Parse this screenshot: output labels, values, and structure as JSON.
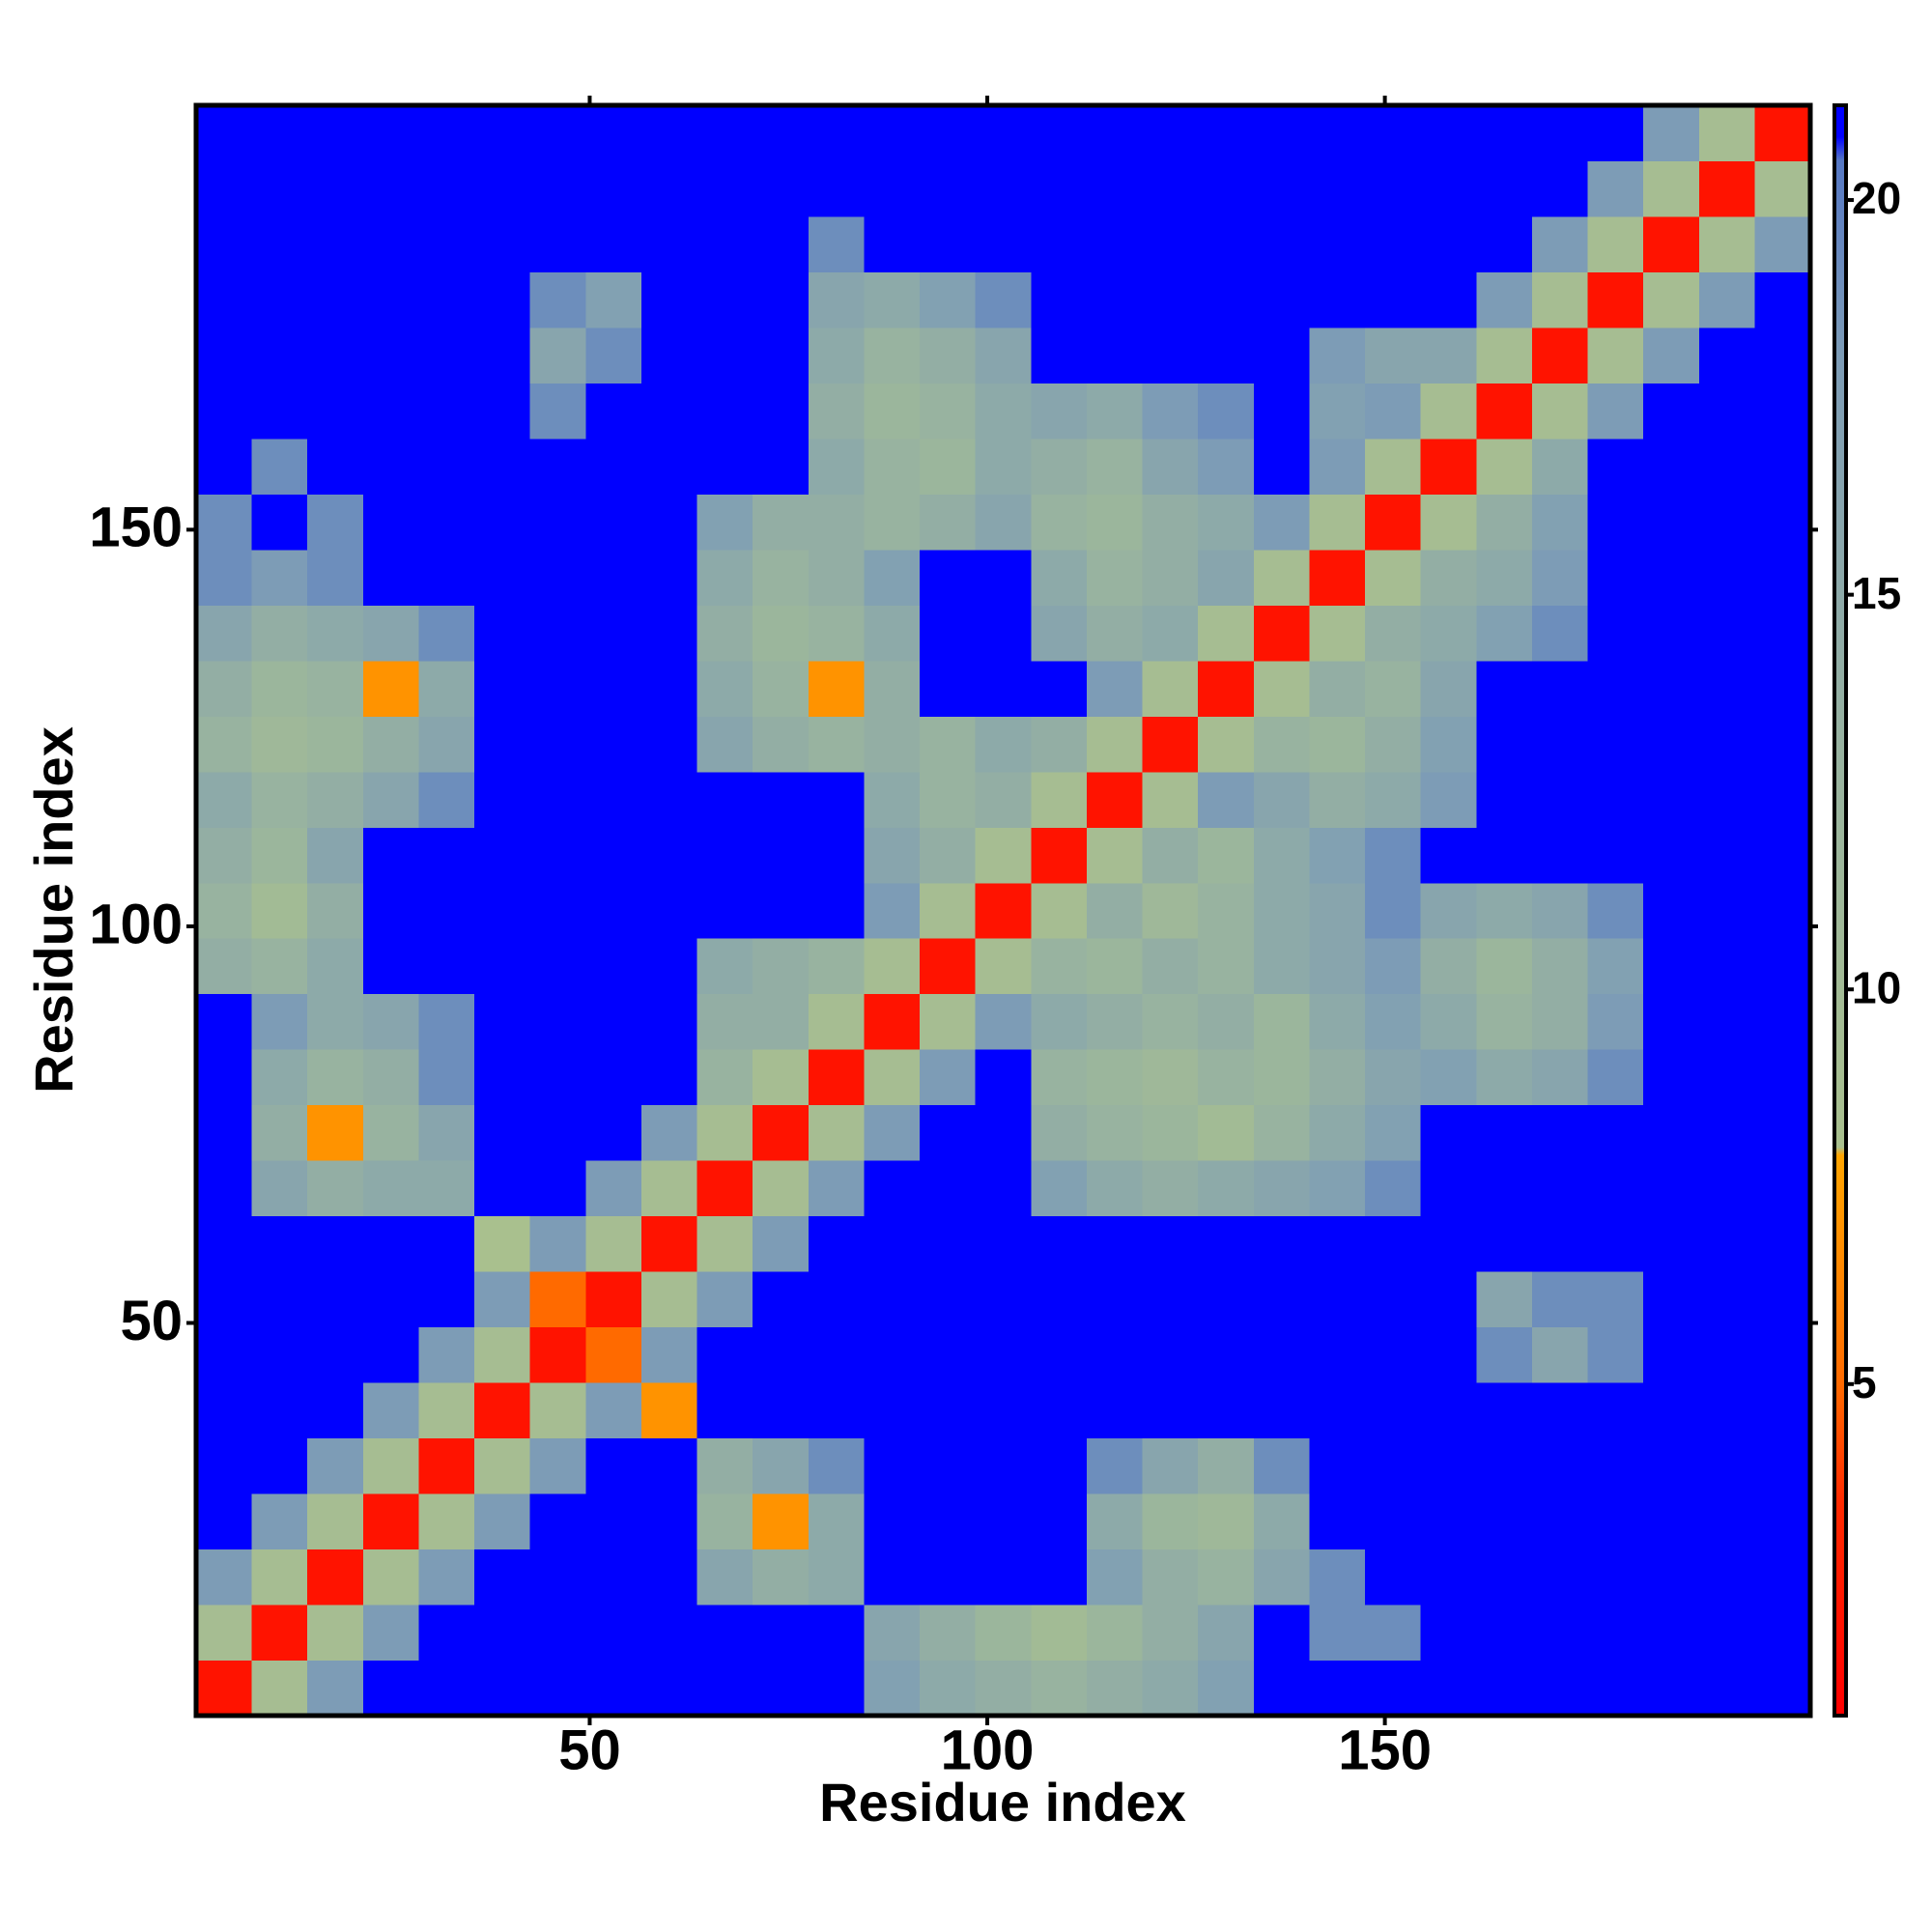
{
  "chart_data": {
    "type": "heatmap",
    "x_label": "Residue index",
    "y_label": "Residue index",
    "bins": [
      0.5,
      7.5,
      14.5,
      21.5,
      28.5,
      35.5,
      42.5,
      49.5,
      56.5,
      63.5,
      70.5,
      77.5,
      84.5,
      91.5,
      98.5,
      105.5,
      112.5,
      119.5,
      126.5,
      133.5,
      140.5,
      147.5,
      154.5,
      161.5,
      168.5,
      175.5,
      182.5,
      189.5,
      196.5,
      203.5
    ],
    "xlim": [
      0.5,
      203.5
    ],
    "ylim": [
      0.5,
      203.5
    ],
    "xticks": [
      50,
      100,
      150
    ],
    "yticks": [
      50,
      100,
      150
    ],
    "zlim": [
      0.8,
      21.2
    ],
    "zticks": [
      5,
      10,
      15,
      20
    ],
    "colorscale": [
      {
        "value": 0.8,
        "color": "#ff0000"
      },
      {
        "value": 3.5,
        "color": "#ff2a00"
      },
      {
        "value": 5,
        "color": "#ff6a00"
      },
      {
        "value": 7.9,
        "color": "#ffa500"
      },
      {
        "value": 8,
        "color": "#a9c08e"
      },
      {
        "value": 13,
        "color": "#98b3a0"
      },
      {
        "value": 18,
        "color": "#7d9cb6"
      },
      {
        "value": 20.5,
        "color": "#5678c4"
      },
      {
        "value": 20.8,
        "color": "#0000ff"
      },
      {
        "value": 21.2,
        "color": "#0000ff"
      }
    ],
    "z": [
      [
        2,
        9,
        18,
        21,
        21,
        21,
        21,
        21,
        21,
        21,
        21,
        21,
        17,
        15,
        14,
        13,
        14,
        15,
        17,
        21,
        21,
        21,
        21,
        21,
        21,
        21,
        21,
        21,
        21
      ],
      [
        9,
        2,
        9,
        18,
        21,
        21,
        21,
        21,
        21,
        21,
        21,
        21,
        16,
        14,
        12,
        10,
        12,
        14,
        16,
        21,
        19,
        19,
        21,
        21,
        21,
        21,
        21,
        21,
        21
      ],
      [
        18,
        9,
        2,
        9,
        18,
        21,
        21,
        21,
        21,
        16,
        14,
        15,
        21,
        21,
        21,
        21,
        17,
        14,
        13,
        16,
        19,
        21,
        21,
        21,
        21,
        21,
        21,
        21,
        21
      ],
      [
        21,
        18,
        9,
        2,
        9,
        18,
        21,
        21,
        21,
        13,
        7,
        15,
        21,
        21,
        21,
        21,
        15,
        12,
        11,
        15,
        21,
        21,
        21,
        21,
        21,
        21,
        21,
        21,
        21
      ],
      [
        21,
        21,
        18,
        9,
        2,
        9,
        18,
        21,
        21,
        14,
        16,
        19,
        21,
        21,
        21,
        21,
        19,
        16,
        14,
        19,
        21,
        21,
        21,
        21,
        21,
        21,
        21,
        21,
        21
      ],
      [
        21,
        21,
        21,
        18,
        9,
        2,
        9,
        18,
        7,
        21,
        21,
        21,
        21,
        21,
        21,
        21,
        21,
        21,
        21,
        21,
        21,
        21,
        21,
        21,
        21,
        21,
        21,
        21,
        21
      ],
      [
        21,
        21,
        21,
        21,
        18,
        9,
        2,
        5,
        18,
        21,
        21,
        21,
        21,
        21,
        21,
        21,
        21,
        21,
        21,
        21,
        21,
        21,
        21,
        19,
        16,
        19,
        21,
        21,
        21
      ],
      [
        21,
        21,
        21,
        21,
        21,
        18,
        5,
        2,
        9,
        18,
        21,
        21,
        21,
        21,
        21,
        21,
        21,
        21,
        21,
        21,
        21,
        21,
        21,
        16,
        19,
        19,
        21,
        21,
        21
      ],
      [
        21,
        21,
        21,
        21,
        21,
        8,
        18,
        9,
        2,
        9,
        18,
        21,
        21,
        21,
        21,
        21,
        21,
        21,
        21,
        21,
        21,
        21,
        21,
        21,
        21,
        21,
        21,
        21,
        21
      ],
      [
        21,
        16,
        14,
        15,
        15,
        21,
        21,
        18,
        9,
        2,
        9,
        18,
        21,
        21,
        21,
        17,
        15,
        14,
        15,
        16,
        17,
        19,
        21,
        21,
        21,
        21,
        21,
        21,
        21
      ],
      [
        21,
        14,
        7,
        13,
        16,
        21,
        21,
        21,
        18,
        9,
        2,
        9,
        18,
        21,
        21,
        14,
        13,
        12,
        10,
        13,
        15,
        17,
        21,
        21,
        21,
        21,
        21,
        21,
        21
      ],
      [
        21,
        15,
        13,
        14,
        19,
        21,
        21,
        21,
        21,
        13,
        9,
        2,
        9,
        18,
        21,
        13,
        12,
        11,
        13,
        12,
        14,
        16,
        17,
        15,
        16,
        19,
        21,
        21,
        21
      ],
      [
        21,
        18,
        15,
        16,
        19,
        21,
        21,
        21,
        21,
        14,
        14,
        9,
        2,
        9,
        18,
        15,
        14,
        13,
        14,
        12,
        15,
        17,
        15,
        13,
        14,
        18,
        21,
        21,
        21
      ],
      [
        14,
        13,
        15,
        21,
        21,
        21,
        21,
        21,
        21,
        15,
        14,
        13,
        9,
        2,
        9,
        13,
        12,
        14,
        13,
        15,
        16,
        18,
        14,
        12,
        14,
        17,
        21,
        21,
        21
      ],
      [
        13,
        10,
        14,
        21,
        21,
        21,
        21,
        21,
        21,
        21,
        21,
        21,
        18,
        9,
        2,
        9,
        14,
        11,
        13,
        15,
        16,
        19,
        16,
        15,
        16,
        19,
        21,
        21,
        21
      ],
      [
        14,
        12,
        16,
        21,
        21,
        21,
        21,
        21,
        21,
        21,
        21,
        21,
        16,
        14,
        9,
        2,
        9,
        14,
        12,
        15,
        17,
        19,
        21,
        21,
        21,
        21,
        21,
        21,
        21
      ],
      [
        15,
        13,
        14,
        16,
        19,
        21,
        21,
        21,
        21,
        21,
        21,
        21,
        15,
        13,
        14,
        9,
        2,
        9,
        18,
        16,
        14,
        15,
        18,
        21,
        21,
        21,
        21,
        21,
        21
      ],
      [
        13,
        11,
        12,
        14,
        16,
        21,
        21,
        21,
        21,
        16,
        14,
        13,
        14,
        13,
        15,
        14,
        9,
        2,
        9,
        13,
        12,
        14,
        17,
        21,
        21,
        21,
        21,
        21,
        21
      ],
      [
        14,
        12,
        13,
        7,
        15,
        21,
        21,
        21,
        21,
        15,
        13,
        7,
        14,
        21,
        21,
        21,
        18,
        9,
        2,
        9,
        14,
        13,
        16,
        21,
        21,
        21,
        21,
        21,
        21
      ],
      [
        16,
        14,
        15,
        16,
        19,
        21,
        21,
        21,
        21,
        14,
        12,
        13,
        15,
        21,
        21,
        16,
        14,
        15,
        9,
        2,
        9,
        14,
        15,
        17,
        19,
        21,
        21,
        21,
        21
      ],
      [
        19,
        18,
        19,
        21,
        21,
        21,
        21,
        21,
        21,
        15,
        13,
        14,
        17,
        21,
        21,
        15,
        13,
        14,
        16,
        9,
        2,
        9,
        14,
        15,
        18,
        21,
        21,
        21,
        21
      ],
      [
        19,
        21,
        19,
        21,
        21,
        21,
        21,
        21,
        21,
        17,
        14,
        14,
        13,
        14,
        16,
        13,
        12,
        14,
        15,
        18,
        9,
        2,
        9,
        14,
        17,
        21,
        21,
        21,
        21
      ],
      [
        21,
        19,
        21,
        21,
        21,
        21,
        21,
        21,
        21,
        21,
        21,
        15,
        13,
        12,
        15,
        14,
        13,
        16,
        18,
        21,
        18,
        9,
        2,
        9,
        15,
        21,
        21,
        21,
        21
      ],
      [
        21,
        21,
        21,
        21,
        21,
        21,
        19,
        21,
        21,
        21,
        21,
        14,
        12,
        13,
        15,
        16,
        15,
        18,
        19,
        21,
        17,
        18,
        9,
        2,
        9,
        18,
        21,
        21,
        21
      ],
      [
        21,
        21,
        21,
        21,
        21,
        21,
        16,
        19,
        21,
        21,
        21,
        15,
        13,
        14,
        16,
        21,
        21,
        21,
        21,
        21,
        18,
        16,
        16,
        9,
        2,
        9,
        18,
        21,
        21
      ],
      [
        21,
        21,
        21,
        21,
        21,
        21,
        19,
        17,
        21,
        21,
        21,
        16,
        15,
        17,
        19,
        21,
        21,
        21,
        21,
        21,
        21,
        21,
        21,
        18,
        9,
        2,
        9,
        18,
        21
      ],
      [
        21,
        21,
        21,
        21,
        21,
        21,
        21,
        21,
        21,
        21,
        21,
        19,
        21,
        21,
        21,
        21,
        21,
        21,
        21,
        21,
        21,
        21,
        21,
        21,
        18,
        9,
        2,
        9,
        18
      ],
      [
        21,
        21,
        21,
        21,
        21,
        21,
        21,
        21,
        21,
        21,
        21,
        21,
        21,
        21,
        21,
        21,
        21,
        21,
        21,
        21,
        21,
        21,
        21,
        21,
        21,
        18,
        9,
        2,
        9
      ],
      [
        21,
        21,
        21,
        21,
        21,
        21,
        21,
        21,
        21,
        21,
        21,
        21,
        21,
        21,
        21,
        21,
        21,
        21,
        21,
        21,
        21,
        21,
        21,
        21,
        21,
        21,
        18,
        9,
        2
      ]
    ]
  }
}
